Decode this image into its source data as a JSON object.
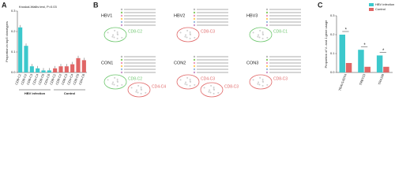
{
  "panel_labels": [
    "A",
    "B",
    "C"
  ],
  "chart_data": [
    {
      "type": "bar",
      "ylabel": "Proportion in top5 clonotypes",
      "annotation": "Kruskal-Wallis test, P=0.03",
      "categories": [
        "CD8-C1",
        "CD8-C2",
        "CD8-C3",
        "CD4-C4",
        "CD8-C5",
        "CD4-C6"
      ],
      "series": [
        {
          "name": "HBV infection",
          "color": "#3cc8cc",
          "values": [
            0.22,
            0.13,
            0.03,
            0.02,
            0.01,
            0.01
          ]
        },
        {
          "name": "Control",
          "color": "#e06666",
          "values": [
            0.02,
            0.03,
            0.03,
            0.04,
            0.07,
            0.06
          ]
        }
      ],
      "ylim": [
        0,
        0.3
      ],
      "yticks": [
        {
          "value": 0,
          "label": "0.0"
        },
        {
          "value": 0.1,
          "label": "0.1"
        },
        {
          "value": 0.2,
          "label": "0.2"
        },
        {
          "value": 0.3,
          "label": "0.3"
        }
      ]
    },
    {
      "type": "grouped",
      "ylabel": "Proportion of V- and J-gene usage",
      "categories": [
        "TRAV14DV4",
        "TRBV13",
        "TRAJ39"
      ],
      "series": [
        {
          "name": "HBV infection",
          "color": "#3cc8cc",
          "values": [
            0.2,
            0.12,
            0.09
          ]
        },
        {
          "name": "Control",
          "color": "#e06666",
          "values": [
            0.05,
            0.03,
            0.03
          ]
        }
      ],
      "significance": [
        "*",
        "*",
        "*"
      ],
      "ylim": [
        0,
        0.3
      ],
      "yticks": [
        {
          "value": 0,
          "label": "0.0"
        },
        {
          "value": 0.1,
          "label": "0.1"
        },
        {
          "value": 0.2,
          "label": "0.2"
        },
        {
          "value": 0.3,
          "label": "0.3"
        }
      ],
      "legend": "upper right"
    }
  ],
  "network": {
    "panels": [
      {
        "name": "HBV1",
        "clusters": [
          "CD8-C2"
        ]
      },
      {
        "name": "HBV2",
        "clusters": [
          "CD8-C3"
        ]
      },
      {
        "name": "HBV3",
        "clusters": [
          "CD8-C1"
        ]
      },
      {
        "name": "CON1",
        "clusters": [
          "CD8-C2",
          "CD4-C4"
        ]
      },
      {
        "name": "CON2",
        "clusters": [
          "CD4-C3",
          "CD8-C3"
        ]
      },
      {
        "name": "CON3",
        "clusters": [
          "CD8-C3"
        ]
      }
    ]
  }
}
